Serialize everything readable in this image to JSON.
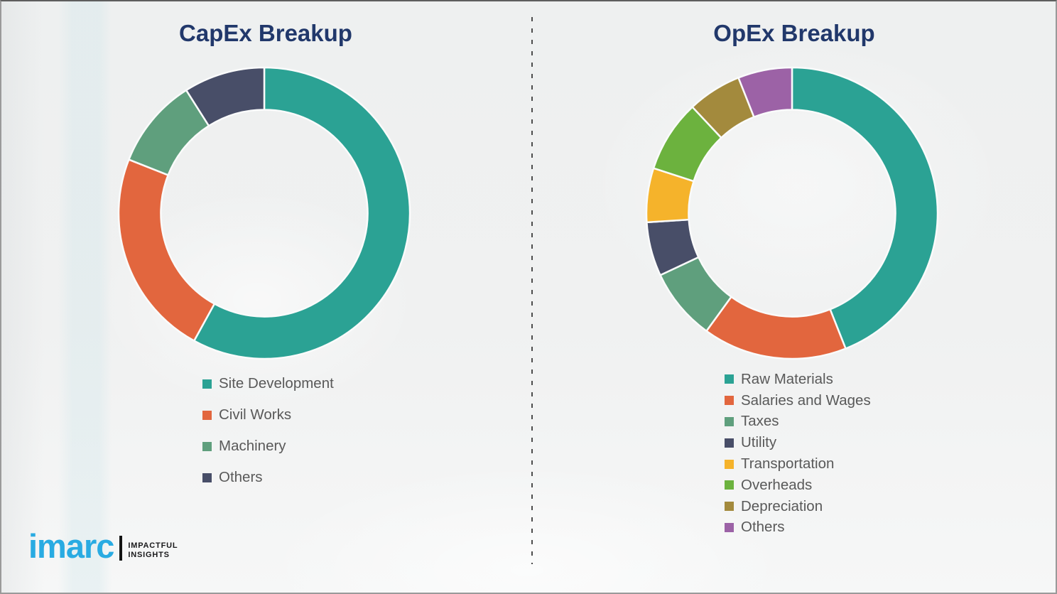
{
  "branding": {
    "logo_text": "imarc",
    "tagline_line1": "IMPACTFUL",
    "tagline_line2": "INSIGHTS",
    "logo_color": "#29ABE2"
  },
  "divider_style": "vertical-dashed",
  "chart_data": [
    {
      "type": "pie",
      "subtype": "donut",
      "title": "CapEx Breakup",
      "title_color": "#21386B",
      "labels": [
        "Site Development",
        "Civil Works",
        "Machinery",
        "Others"
      ],
      "values": [
        58,
        23,
        10,
        9
      ],
      "colors": [
        "#2BA294",
        "#E2663E",
        "#5F9F7D",
        "#484E68"
      ],
      "start_angle_deg": 0,
      "direction": "clockwise",
      "inner_radius_ratio": 0.71,
      "legend_position": "below-left"
    },
    {
      "type": "pie",
      "subtype": "donut",
      "title": "OpEx Breakup",
      "title_color": "#21386B",
      "labels": [
        "Raw Materials",
        "Salaries and Wages",
        "Taxes",
        "Utility",
        "Transportation",
        "Overheads",
        "Depreciation",
        "Others"
      ],
      "values": [
        44,
        16,
        8,
        6,
        6,
        8,
        6,
        6
      ],
      "colors": [
        "#2BA294",
        "#E2663E",
        "#5F9F7D",
        "#484E68",
        "#F5B32B",
        "#6CB23E",
        "#A38A3D",
        "#9C62A6"
      ],
      "start_angle_deg": 0,
      "direction": "clockwise",
      "inner_radius_ratio": 0.71,
      "legend_position": "below-left"
    }
  ]
}
